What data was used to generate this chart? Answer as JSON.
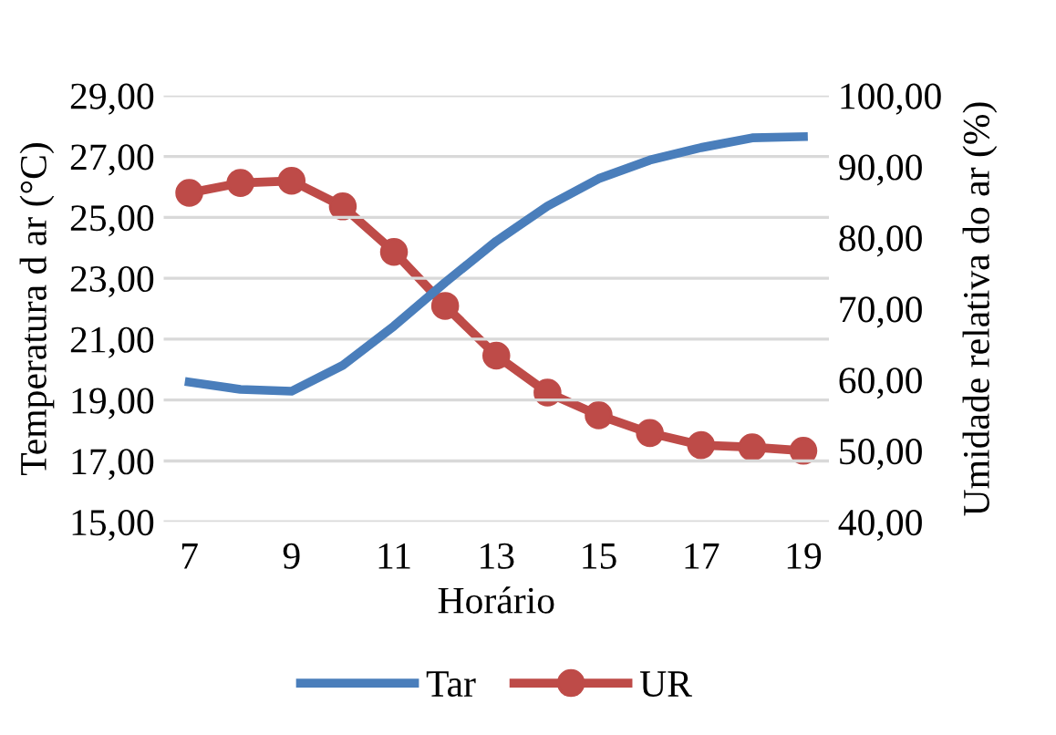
{
  "chart_data": {
    "type": "line",
    "xlabel": "Horário",
    "ylabel": "Temperatura d ar (°C)",
    "y2label": "Umidade relativa do ar (%)",
    "x": [
      7,
      8,
      9,
      10,
      11,
      12,
      13,
      14,
      15,
      16,
      17,
      18,
      19
    ],
    "series": [
      {
        "name": "Tar",
        "color": "#4a7ebb",
        "marker": "none",
        "values": [
          19.59,
          19.35,
          19.29,
          20.14,
          21.43,
          22.86,
          24.22,
          25.37,
          26.27,
          26.88,
          27.29,
          27.61,
          27.65
        ]
      },
      {
        "name": "UR",
        "color": "#be4b48",
        "marker": "circle",
        "axis": "y2",
        "values": [
          86.3,
          87.7,
          88.0,
          84.4,
          78.0,
          70.4,
          63.4,
          58.2,
          55.0,
          52.5,
          50.8,
          50.5,
          50.0
        ]
      }
    ],
    "xlim": [
      6.5,
      19.5
    ],
    "xticks": [
      7,
      9,
      11,
      13,
      15,
      17,
      19
    ],
    "ylim": [
      15,
      29
    ],
    "yticks": [
      {
        "value": 15,
        "label": "15,00"
      },
      {
        "value": 17,
        "label": "17,00"
      },
      {
        "value": 19,
        "label": "19,00"
      },
      {
        "value": 21,
        "label": "21,00"
      },
      {
        "value": 23,
        "label": "23,00"
      },
      {
        "value": 25,
        "label": "25,00"
      },
      {
        "value": 27,
        "label": "27,00"
      },
      {
        "value": 29,
        "label": "29,00"
      }
    ],
    "y2lim": [
      40,
      100
    ],
    "y2ticks": [
      {
        "value": 40,
        "label": "40,00"
      },
      {
        "value": 50,
        "label": "50,00"
      },
      {
        "value": 60,
        "label": "60,00"
      },
      {
        "value": 70,
        "label": "70,00"
      },
      {
        "value": 80,
        "label": "80,00"
      },
      {
        "value": 90,
        "label": "90,00"
      },
      {
        "value": 100,
        "label": "100,00"
      }
    ],
    "grid": "y",
    "legend": "bottom"
  }
}
